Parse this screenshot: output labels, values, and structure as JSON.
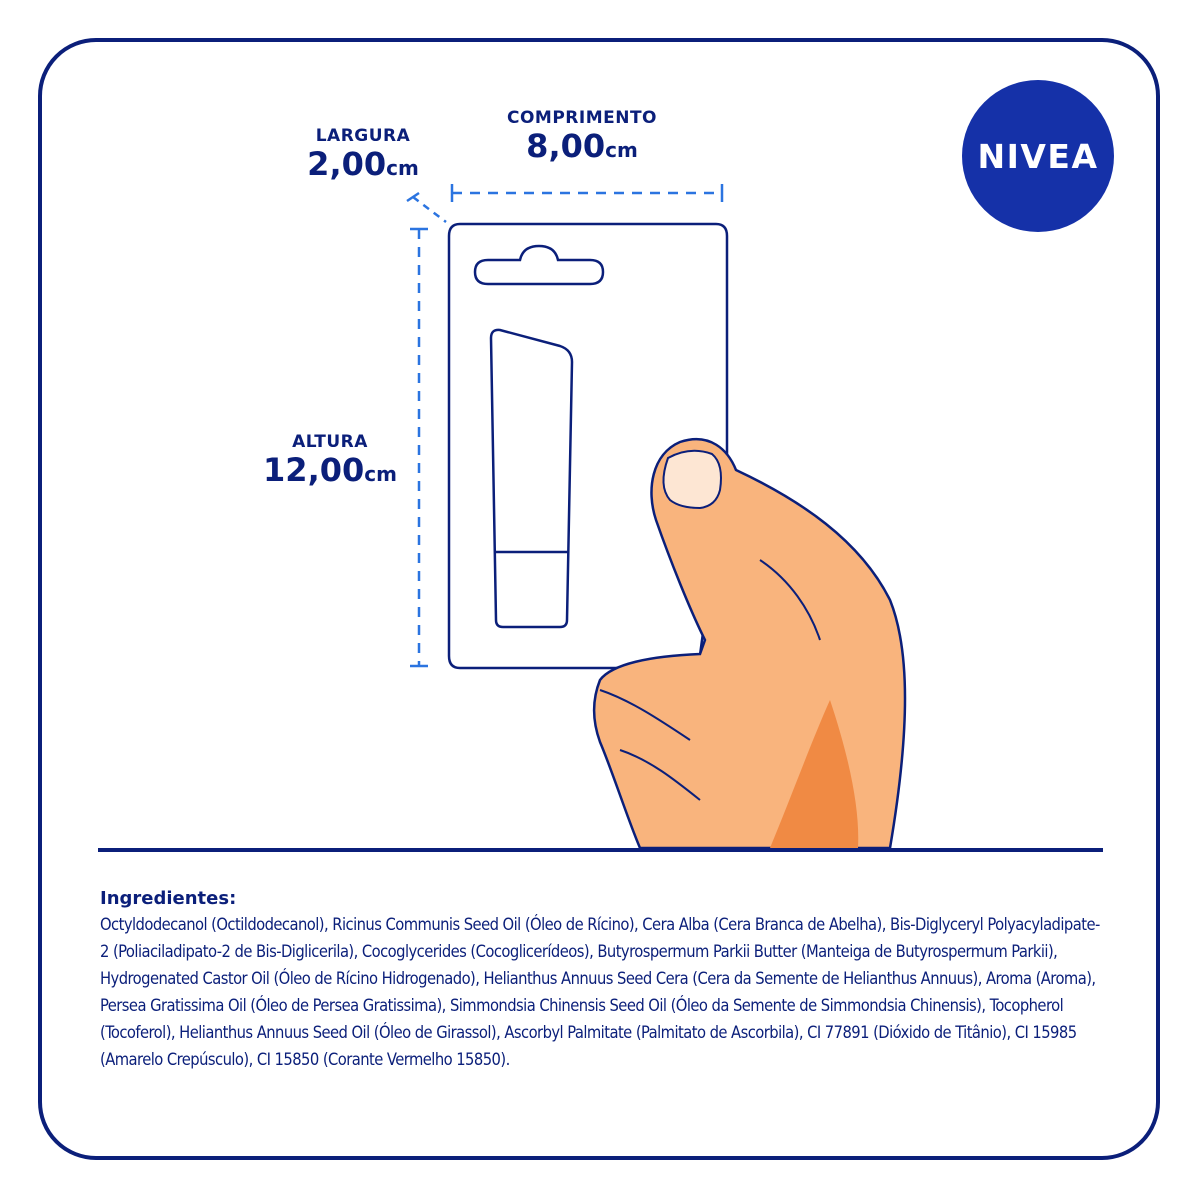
{
  "brand": {
    "logo_text": "NIVEA",
    "logo_color": "#1531a8",
    "ink_color": "#0b1f7a",
    "skin_color": "#f9b47d",
    "skin_shadow": "#f08a44"
  },
  "dimensions": {
    "largura": {
      "label": "LARGURA",
      "value": "2,00",
      "unit": "cm"
    },
    "comprimento": {
      "label": "COMPRIMENTO",
      "value": "8,00",
      "unit": "cm"
    },
    "altura": {
      "label": "ALTURA",
      "value": "12,00",
      "unit": "cm"
    }
  },
  "ingredients": {
    "title": "Ingredientes:",
    "text": "Octyldodecanol (Octildodecanol), Ricinus Communis Seed Oil (Óleo de Rícino), Cera Alba (Cera Branca de Abelha), Bis-Diglyceryl Polyacyladipate-2 (Poliaciladipato-2 de Bis-Diglicerila), Cocoglycerides (Cocoglicerídeos), Butyrospermum Parkii Butter (Manteiga de Butyrospermum Parkii), Hydrogenated Castor Oil (Óleo de Rícino Hidrogenado), Helianthus Annuus Seed Cera (Cera da Semente de Helianthus Annuus), Aroma (Aroma), Persea Gratissima Oil (Óleo de Persea Gratissima), Simmondsia Chinensis Seed Oil (Óleo da Semente de Simmondsia Chinensis), Tocopherol (Tocoferol), Helianthus Annuus Seed Oil (Óleo de Girassol), Ascorbyl Palmitate (Palmitato de Ascorbila), CI 77891 (Dióxido de Titânio), CI 15985 (Amarelo Crepúsculo), CI 15850 (Corante Vermelho 15850)."
  }
}
